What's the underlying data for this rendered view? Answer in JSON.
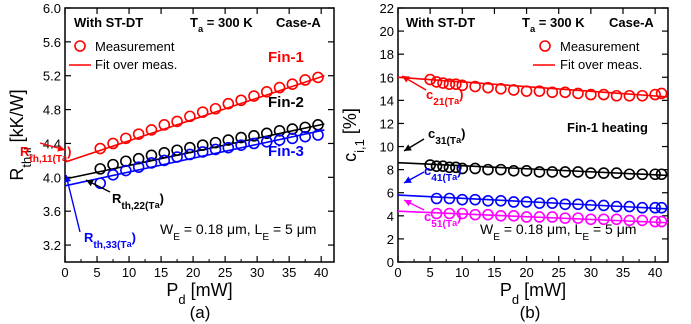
{
  "chart_data": [
    {
      "type": "line",
      "panel_label": "(a)",
      "xlabel": "P",
      "xlabel_sub": "d",
      "xlabel_unit": " [mW]",
      "ylabel": "R",
      "ylabel_sub": "th,ii",
      "ylabel_unit": " [kK/W]",
      "xlim": [
        0,
        42
      ],
      "ylim": [
        3.0,
        6.0
      ],
      "xticks": [
        "0",
        "5",
        "10",
        "15",
        "20",
        "25",
        "30",
        "35",
        "40"
      ],
      "yticks": [
        "3.2",
        "3.6",
        "4.0",
        "4.4",
        "4.8",
        "5.2",
        "5.6",
        "6.0"
      ],
      "header_left": "With ST-DT",
      "header_mid": "T",
      "header_mid_sub": "a",
      "header_mid_rest": " = 300 K",
      "header_right": "Case-A",
      "legend": {
        "marker_label": "Measurement",
        "line_label": "Fit over meas."
      },
      "dims_text": {
        "p1": "W",
        "s1": "E",
        "p2": " = 0.18 μm, L",
        "s2": "E",
        "p3": " = 5 μm"
      },
      "series": [
        {
          "name": "Fin-1",
          "color": "#ff0000",
          "x": [
            5.5,
            7.5,
            9.5,
            11.5,
            13.5,
            15.5,
            17.5,
            19.5,
            21.5,
            23.5,
            25.5,
            27.5,
            29.5,
            31.5,
            33.5,
            35.5,
            37.5,
            39.5
          ],
          "y": [
            4.34,
            4.4,
            4.46,
            4.51,
            4.56,
            4.62,
            4.66,
            4.72,
            4.77,
            4.81,
            4.87,
            4.91,
            4.96,
            5.01,
            5.06,
            5.1,
            5.15,
            5.18
          ],
          "fit": [
            [
              0,
              4.18
            ],
            [
              40.5,
              5.2
            ]
          ]
        },
        {
          "name": "Fin-2",
          "color": "#000000",
          "x": [
            5.5,
            7.5,
            9.5,
            11.5,
            13.5,
            15.5,
            17.5,
            19.5,
            21.5,
            23.5,
            25.5,
            27.5,
            29.5,
            31.5,
            33.5,
            35.5,
            37.5,
            39.5
          ],
          "y": [
            4.1,
            4.15,
            4.19,
            4.22,
            4.26,
            4.29,
            4.32,
            4.35,
            4.38,
            4.41,
            4.44,
            4.47,
            4.49,
            4.52,
            4.55,
            4.57,
            4.59,
            4.62
          ],
          "fit": [
            [
              0,
              3.98
            ],
            [
              40.5,
              4.63
            ]
          ]
        },
        {
          "name": "Fin-3",
          "color": "#0000ff",
          "x": [
            5.5,
            7.5,
            9.5,
            11.5,
            13.5,
            15.5,
            17.5,
            19.5,
            21.5,
            23.5,
            25.5,
            27.5,
            29.5,
            31.5,
            33.5,
            35.5,
            37.5,
            39.5
          ],
          "y": [
            3.93,
            4.03,
            4.08,
            4.12,
            4.17,
            4.2,
            4.24,
            4.27,
            4.3,
            4.33,
            4.35,
            4.38,
            4.4,
            4.42,
            4.44,
            4.46,
            4.48,
            4.5
          ],
          "fit": [
            [
              0,
              3.9
            ],
            [
              40.5,
              4.56
            ]
          ]
        }
      ],
      "annotations": [
        {
          "main": "R",
          "sub": "th,11",
          "rest": "(T",
          "rest_sub": "a",
          "close": ")",
          "color": "#ff0000"
        },
        {
          "main": "R",
          "sub": "th,22",
          "rest": "(T",
          "rest_sub": "a",
          "close": ")",
          "color": "#000000"
        },
        {
          "main": "R",
          "sub": "th,33",
          "rest": "(T",
          "rest_sub": "a",
          "close": ")",
          "color": "#0000ff"
        }
      ]
    },
    {
      "type": "line",
      "panel_label": "(b)",
      "xlabel": "P",
      "xlabel_sub": "d",
      "xlabel_unit": " [mW]",
      "ylabel": "c",
      "ylabel_sub": "i,1",
      "ylabel_unit": " [%]",
      "xlim": [
        0,
        42
      ],
      "ylim": [
        0,
        22
      ],
      "xticks": [
        "0",
        "5",
        "10",
        "15",
        "20",
        "25",
        "30",
        "35",
        "40"
      ],
      "yticks": [
        "0",
        "2",
        "4",
        "6",
        "8",
        "10",
        "12",
        "14",
        "16",
        "18",
        "20",
        "22"
      ],
      "header_left": "With ST-DT",
      "header_mid": "T",
      "header_mid_sub": "a",
      "header_mid_rest": " = 300 K",
      "header_right": "Case-A",
      "legend": {
        "marker_label": "Measurement",
        "line_label": "Fit over meas."
      },
      "note": "Fin-1 heating",
      "dims_text": {
        "p1": "W",
        "s1": "E",
        "p2": " = 0.18 μm, L",
        "s2": "E",
        "p3": " = 5 μm"
      },
      "series": [
        {
          "name": "c21",
          "color": "#ff0000",
          "x": [
            5,
            6,
            7,
            8,
            9,
            10,
            12,
            14,
            16,
            18,
            20,
            22,
            24,
            26,
            28,
            30,
            32,
            34,
            36,
            38,
            40,
            41
          ],
          "y": [
            15.8,
            15.6,
            15.5,
            15.4,
            15.4,
            15.3,
            15.2,
            15.1,
            15.0,
            14.9,
            14.8,
            14.8,
            14.7,
            14.7,
            14.6,
            14.5,
            14.5,
            14.4,
            14.4,
            14.4,
            14.5,
            14.6
          ],
          "fit": [
            [
              0,
              16.0
            ],
            [
              42,
              14.3
            ]
          ]
        },
        {
          "name": "c31",
          "color": "#000000",
          "x": [
            5,
            6,
            7,
            8,
            9,
            10,
            12,
            14,
            16,
            18,
            20,
            22,
            24,
            26,
            28,
            30,
            32,
            34,
            36,
            38,
            40,
            41
          ],
          "y": [
            8.4,
            8.3,
            8.3,
            8.2,
            8.2,
            8.1,
            8.1,
            8.0,
            8.0,
            7.9,
            7.9,
            7.8,
            7.8,
            7.8,
            7.8,
            7.7,
            7.7,
            7.7,
            7.6,
            7.6,
            7.6,
            7.6
          ],
          "fit": [
            [
              0,
              8.6
            ],
            [
              42,
              7.5
            ]
          ]
        },
        {
          "name": "c41",
          "color": "#0000ff",
          "x": [
            6,
            8,
            10,
            12,
            14,
            16,
            18,
            20,
            22,
            24,
            26,
            28,
            30,
            32,
            34,
            36,
            38,
            40,
            41
          ],
          "y": [
            5.5,
            5.5,
            5.4,
            5.4,
            5.3,
            5.3,
            5.2,
            5.2,
            5.1,
            5.1,
            5.0,
            5.0,
            4.9,
            4.9,
            4.8,
            4.8,
            4.7,
            4.7,
            4.7
          ],
          "fit": [
            [
              0,
              5.8
            ],
            [
              42,
              4.6
            ]
          ]
        },
        {
          "name": "c51",
          "color": "#ff00ff",
          "x": [
            6,
            8,
            10,
            12,
            14,
            16,
            18,
            20,
            22,
            24,
            26,
            28,
            30,
            32,
            34,
            36,
            38,
            40,
            41
          ],
          "y": [
            4.2,
            4.2,
            4.2,
            4.1,
            4.1,
            4.0,
            4.0,
            3.9,
            3.9,
            3.9,
            3.8,
            3.8,
            3.7,
            3.7,
            3.7,
            3.6,
            3.6,
            3.5,
            3.5
          ],
          "fit": [
            [
              0,
              4.4
            ],
            [
              42,
              3.4
            ]
          ]
        }
      ],
      "annotations": [
        {
          "main": "c",
          "sub": "21",
          "rest": "(T",
          "rest_sub": "a",
          "close": ")",
          "color": "#ff0000"
        },
        {
          "main": "c",
          "sub": "31",
          "rest": "(T",
          "rest_sub": "a",
          "close": ")",
          "color": "#000000"
        },
        {
          "main": "c",
          "sub": "41",
          "rest": "(T",
          "rest_sub": "a",
          "close": ")",
          "color": "#0000ff"
        },
        {
          "main": "c",
          "sub": "51",
          "rest": "(T",
          "rest_sub": "a",
          "close": ")",
          "color": "#ff00ff"
        }
      ]
    }
  ]
}
